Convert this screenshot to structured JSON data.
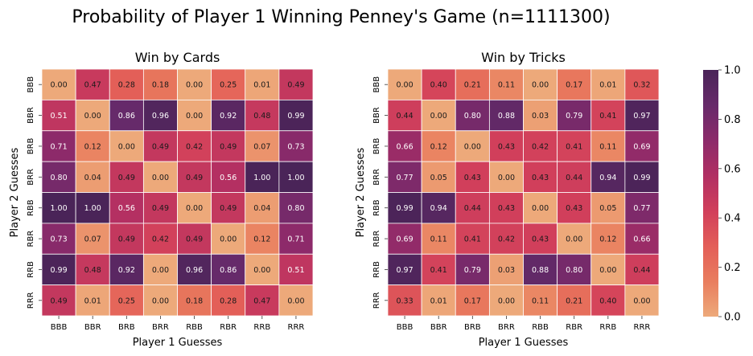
{
  "figure_title": "Probability of Player 1 Winning Penney's Game (n=1111300)",
  "colorbar": {
    "ticks": [
      "0.0",
      "0.2",
      "0.4",
      "0.6",
      "0.8",
      "1.0"
    ],
    "range": [
      0,
      1
    ],
    "colormap": "flare",
    "colors": [
      "#EDA97A",
      "#E97D5E",
      "#E35E58",
      "#D13F5B",
      "#B12F63",
      "#8C2A6A",
      "#672A6A",
      "#4A2458"
    ]
  },
  "chart_data": [
    {
      "type": "heatmap",
      "title": "Win by Cards",
      "xlabel": "Player 1 Guesses",
      "ylabel": "Player 2 Guesses",
      "x_categories": [
        "BBB",
        "BBR",
        "BRB",
        "BRR",
        "RBB",
        "RBR",
        "RRB",
        "RRR"
      ],
      "y_categories": [
        "BBB",
        "BBR",
        "BRB",
        "BRR",
        "RBB",
        "RBR",
        "RRB",
        "RRR"
      ],
      "values": [
        [
          0.0,
          0.47,
          0.28,
          0.18,
          0.0,
          0.25,
          0.01,
          0.49
        ],
        [
          0.51,
          0.0,
          0.86,
          0.96,
          0.0,
          0.92,
          0.48,
          0.99
        ],
        [
          0.71,
          0.12,
          0.0,
          0.49,
          0.42,
          0.49,
          0.07,
          0.73
        ],
        [
          0.8,
          0.04,
          0.49,
          0.0,
          0.49,
          0.56,
          1.0,
          1.0
        ],
        [
          1.0,
          1.0,
          0.56,
          0.49,
          0.0,
          0.49,
          0.04,
          0.8
        ],
        [
          0.73,
          0.07,
          0.49,
          0.42,
          0.49,
          0.0,
          0.12,
          0.71
        ],
        [
          0.99,
          0.48,
          0.92,
          0.0,
          0.96,
          0.86,
          0.0,
          0.51
        ],
        [
          0.49,
          0.01,
          0.25,
          0.0,
          0.18,
          0.28,
          0.47,
          0.0
        ]
      ],
      "vmin": 0,
      "vmax": 1
    },
    {
      "type": "heatmap",
      "title": "Win by Tricks",
      "xlabel": "Player 1 Guesses",
      "ylabel": "Player 2 Guesses",
      "x_categories": [
        "BBB",
        "BBR",
        "BRB",
        "BRR",
        "RBB",
        "RBR",
        "RRB",
        "RRR"
      ],
      "y_categories": [
        "BBB",
        "BBR",
        "BRB",
        "BRR",
        "RBB",
        "RBR",
        "RRB",
        "RRR"
      ],
      "values": [
        [
          0.0,
          0.4,
          0.21,
          0.11,
          0.0,
          0.17,
          0.01,
          0.32
        ],
        [
          0.44,
          0.0,
          0.8,
          0.88,
          0.03,
          0.79,
          0.41,
          0.97
        ],
        [
          0.66,
          0.12,
          0.0,
          0.43,
          0.42,
          0.41,
          0.11,
          0.69
        ],
        [
          0.77,
          0.05,
          0.43,
          0.0,
          0.43,
          0.44,
          0.94,
          0.99
        ],
        [
          0.99,
          0.94,
          0.44,
          0.43,
          0.0,
          0.43,
          0.05,
          0.77
        ],
        [
          0.69,
          0.11,
          0.41,
          0.42,
          0.43,
          0.0,
          0.12,
          0.66
        ],
        [
          0.97,
          0.41,
          0.79,
          0.03,
          0.88,
          0.8,
          0.0,
          0.44
        ],
        [
          0.33,
          0.01,
          0.17,
          0.0,
          0.11,
          0.21,
          0.4,
          0.0
        ]
      ],
      "vmin": 0,
      "vmax": 1
    }
  ]
}
